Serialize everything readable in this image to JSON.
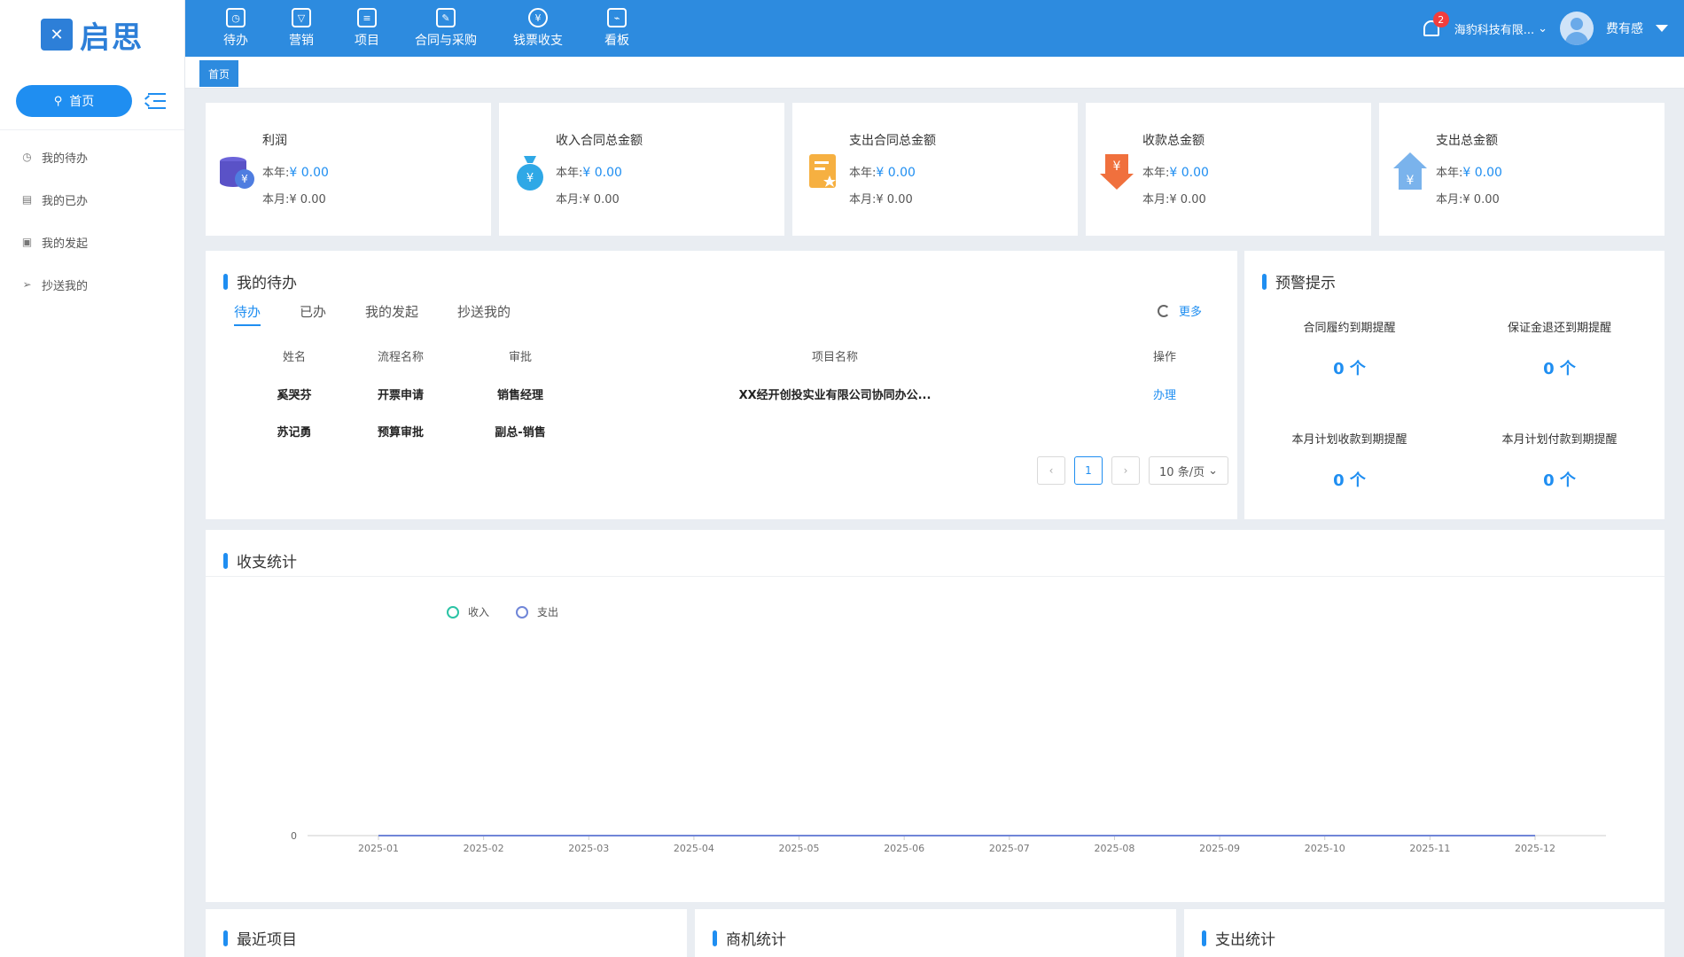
{
  "brand": {
    "name": "启思"
  },
  "sidebar": {
    "home_label": "首页",
    "items": [
      {
        "label": "我的待办",
        "icon": "clock-icon"
      },
      {
        "label": "我的已办",
        "icon": "doc-icon"
      },
      {
        "label": "我的发起",
        "icon": "form-icon"
      },
      {
        "label": "抄送我的",
        "icon": "send-icon"
      }
    ]
  },
  "topnav": {
    "items": [
      {
        "label": "待办"
      },
      {
        "label": "营销"
      },
      {
        "label": "项目"
      },
      {
        "label": "合同与采购"
      },
      {
        "label": "钱票收支"
      },
      {
        "label": "看板"
      }
    ],
    "notification_count": "2",
    "company": "海豹科技有限...",
    "user": "费有感"
  },
  "page_tab": "首页",
  "stats": [
    {
      "title": "利润",
      "year_label": "本年:",
      "year_value": "¥ 0.00",
      "month_label": "本月:",
      "month_value": "¥ 0.00",
      "icon": "coins-icon",
      "color": "#6b63d9"
    },
    {
      "title": "收入合同总金额",
      "year_label": "本年:",
      "year_value": "¥ 0.00",
      "month_label": "本月:",
      "month_value": "¥ 0.00",
      "icon": "money-bag-icon",
      "color": "#2fa8e6"
    },
    {
      "title": "支出合同总金额",
      "year_label": "本年:",
      "year_value": "¥ 0.00",
      "month_label": "本月:",
      "month_value": "¥ 0.00",
      "icon": "document-star-icon",
      "color": "#f6b041"
    },
    {
      "title": "收款总金额",
      "year_label": "本年:",
      "year_value": "¥ 0.00",
      "month_label": "本月:",
      "month_value": "¥ 0.00",
      "icon": "yen-down-icon",
      "color": "#f0703d"
    },
    {
      "title": "支出总金额",
      "year_label": "本年:",
      "year_value": "¥ 0.00",
      "month_label": "本月:",
      "month_value": "¥ 0.00",
      "icon": "yen-up-icon",
      "color": "#7ab3ec"
    }
  ],
  "todo": {
    "title": "我的待办",
    "tabs": [
      "待办",
      "已办",
      "我的发起",
      "抄送我的"
    ],
    "more": "更多",
    "columns": [
      "姓名",
      "流程名称",
      "审批",
      "项目名称",
      "操作"
    ],
    "rows": [
      {
        "name": "奚哭芬",
        "process": "开票申请",
        "approval": "销售经理",
        "project": "XX经开创投实业有限公司协同办公...",
        "action": "办理"
      },
      {
        "name": "苏记勇",
        "process": "预算审批",
        "approval": "副总-销售",
        "project": "",
        "action": ""
      }
    ],
    "pagination": {
      "current": "1",
      "page_size": "10 条/页"
    }
  },
  "warnings": {
    "title": "预警提示",
    "items": [
      {
        "label": "合同履约到期提醒",
        "value": "0 个"
      },
      {
        "label": "保证金退还到期提醒",
        "value": "0 个"
      },
      {
        "label": "本月计划收款到期提醒",
        "value": "0 个"
      },
      {
        "label": "本月计划付款到期提醒",
        "value": "0 个"
      }
    ]
  },
  "chart_title": "收支统计",
  "chart_data": {
    "type": "line",
    "x": [
      "2025-01",
      "2025-02",
      "2025-03",
      "2025-04",
      "2025-05",
      "2025-06",
      "2025-07",
      "2025-08",
      "2025-09",
      "2025-10",
      "2025-11",
      "2025-12"
    ],
    "series": [
      {
        "name": "收入",
        "values": [
          0,
          0,
          0,
          0,
          0,
          0,
          0,
          0,
          0,
          0,
          0,
          0
        ],
        "color": "#2bc3a5"
      },
      {
        "name": "支出",
        "values": [
          0,
          0,
          0,
          0,
          0,
          0,
          0,
          0,
          0,
          0,
          0,
          0
        ],
        "color": "#7086d8"
      }
    ],
    "y_ticks": [
      "0"
    ],
    "legend": "top-left"
  },
  "bottom_sections": [
    {
      "title": "最近项目"
    },
    {
      "title": "商机统计"
    },
    {
      "title": "支出统计"
    }
  ]
}
